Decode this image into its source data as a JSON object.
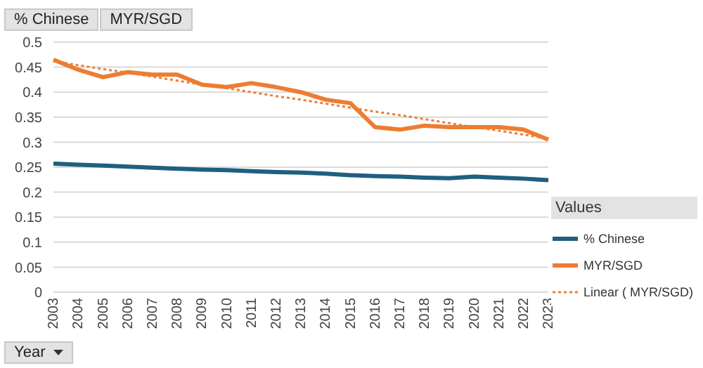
{
  "chart_data": {
    "type": "line",
    "categories": [
      "2003",
      "2004",
      "2005",
      "2006",
      "2007",
      "2008",
      "2009",
      "2010",
      "2011",
      "2012",
      "2013",
      "2014",
      "2015",
      "2016",
      "2017",
      "2018",
      "2019",
      "2020",
      "2021",
      "2022",
      "2023"
    ],
    "series": [
      {
        "name": "% Chinese",
        "color": "#1f5f80",
        "values": [
          0.257,
          0.255,
          0.253,
          0.251,
          0.249,
          0.247,
          0.245,
          0.244,
          0.242,
          0.24,
          0.239,
          0.237,
          0.234,
          0.232,
          0.231,
          0.229,
          0.228,
          0.231,
          0.229,
          0.227,
          0.224
        ]
      },
      {
        "name": "MYR/SGD",
        "color": "#ed7d31",
        "values": [
          0.465,
          0.445,
          0.43,
          0.44,
          0.435,
          0.435,
          0.415,
          0.41,
          0.418,
          0.41,
          0.4,
          0.385,
          0.378,
          0.33,
          0.325,
          0.333,
          0.33,
          0.33,
          0.33,
          0.325,
          0.305
        ]
      },
      {
        "name": "Linear ( MYR/SGD)",
        "color": "#ed7d31",
        "line_style": "dotted",
        "values": [
          0.462,
          0.454,
          0.446,
          0.439,
          0.431,
          0.423,
          0.415,
          0.408,
          0.4,
          0.392,
          0.385,
          0.377,
          0.369,
          0.361,
          0.354,
          0.346,
          0.338,
          0.33,
          0.323,
          0.315,
          0.307
        ]
      }
    ],
    "ylim": [
      0,
      0.5
    ],
    "yticks": [
      0,
      0.05,
      0.1,
      0.15,
      0.2,
      0.25,
      0.3,
      0.35,
      0.4,
      0.45,
      0.5
    ],
    "grid": "y",
    "legend": "bottom right",
    "legend_title": "Values",
    "line_style": "solid",
    "marker": "none",
    "annotations": [
      "% Chinese",
      "MYR/SGD",
      "Year"
    ]
  }
}
